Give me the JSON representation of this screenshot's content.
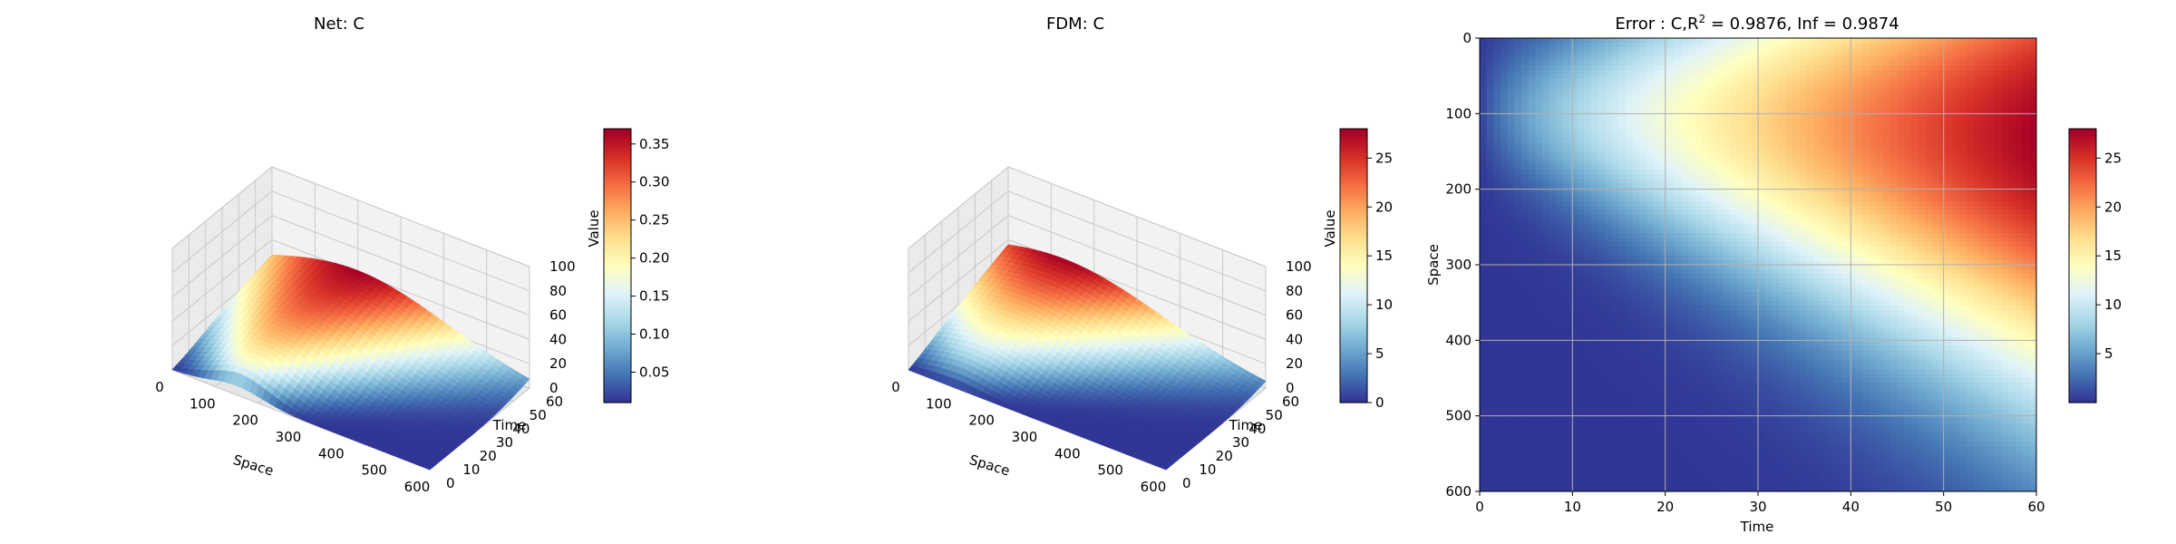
{
  "panels": {
    "net": {
      "title": "Net: C",
      "xlabel": "Space",
      "ylabel": "Time",
      "zlabel": "Value",
      "x_ticks": [
        "0",
        "100",
        "200",
        "300",
        "400",
        "500",
        "600"
      ],
      "y_ticks": [
        "0",
        "10",
        "20",
        "30",
        "40",
        "50",
        "60"
      ],
      "z_ticks": [
        "0",
        "20",
        "40",
        "60",
        "80",
        "100"
      ],
      "colorbar_ticks": [
        "0.05",
        "0.10",
        "0.15",
        "0.20",
        "0.25",
        "0.30",
        "0.35"
      ]
    },
    "fdm": {
      "title": "FDM: C",
      "xlabel": "Space",
      "ylabel": "Time",
      "zlabel": "Value",
      "x_ticks": [
        "0",
        "100",
        "200",
        "300",
        "400",
        "500",
        "600"
      ],
      "y_ticks": [
        "0",
        "10",
        "20",
        "30",
        "40",
        "50",
        "60"
      ],
      "z_ticks": [
        "0",
        "20",
        "40",
        "60",
        "80",
        "100"
      ],
      "colorbar_ticks": [
        "0",
        "5",
        "10",
        "15",
        "20",
        "25"
      ]
    },
    "error": {
      "title_prefix": "Error : C,R",
      "title_sup": "2",
      "title_suffix": " = 0.9876, Inf = 0.9874",
      "xlabel": "Time",
      "ylabel": "Space",
      "x_ticks": [
        "0",
        "10",
        "20",
        "30",
        "40",
        "50",
        "60"
      ],
      "y_ticks": [
        "0",
        "100",
        "200",
        "300",
        "400",
        "500",
        "600"
      ],
      "colorbar_ticks": [
        "5",
        "10",
        "15",
        "20",
        "25"
      ]
    }
  },
  "colormap": "RdYlBu_r",
  "colors": {
    "low": "#313695",
    "mid": "#ffffbf",
    "high": "#a50026",
    "pane": "#f2f2f2",
    "grid": "#c8c8c8"
  },
  "chart_data": [
    {
      "type": "surface",
      "name": "Net: C",
      "x_range": [
        0,
        600
      ],
      "y_range": [
        0,
        60
      ],
      "z_range": [
        0,
        100
      ],
      "value_range": [
        0.0,
        0.37
      ],
      "description_values": {
        "peak_value": 0.36,
        "peak_region_space": [
          100,
          250
        ],
        "peak_region_time": [
          20,
          60
        ]
      }
    },
    {
      "type": "surface",
      "name": "FDM: C",
      "x_range": [
        0,
        600
      ],
      "y_range": [
        0,
        60
      ],
      "z_range": [
        0,
        100
      ],
      "value_range": [
        0,
        28
      ],
      "description_values": {
        "peak_value": 28,
        "peak_space": 100,
        "peak_time": 60
      }
    },
    {
      "type": "heatmap",
      "name": "Error",
      "x_range": [
        0,
        60
      ],
      "y_range": [
        0,
        600
      ],
      "value_range": [
        0,
        28
      ],
      "r2": 0.9876,
      "inf": 0.9874
    }
  ]
}
